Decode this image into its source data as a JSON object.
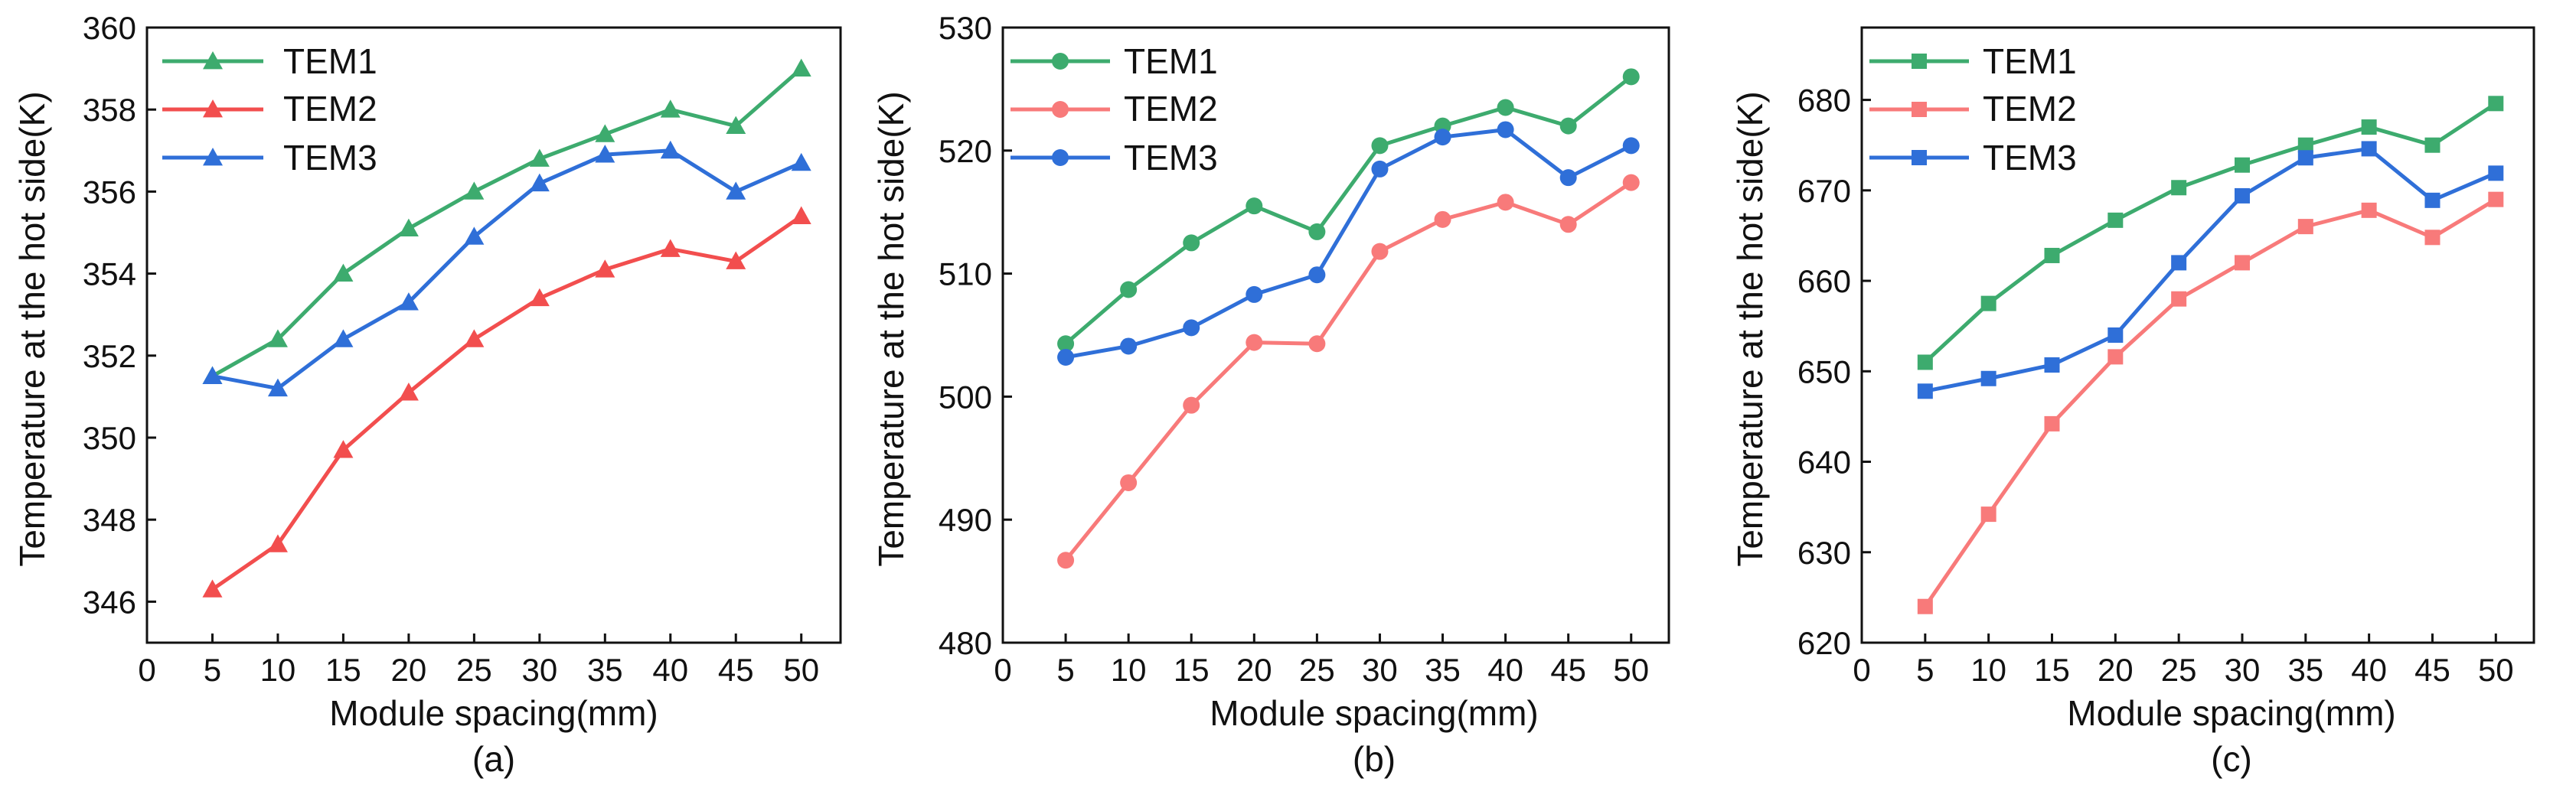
{
  "chart_data": [
    {
      "type": "line",
      "caption": "(a)",
      "xlabel": "Module spacing(mm)",
      "ylabel": "Temperature at the hot side(K)",
      "xlim": [
        0,
        53
      ],
      "xticks": [
        0,
        5,
        10,
        15,
        20,
        25,
        30,
        35,
        40,
        45,
        50
      ],
      "ylim": [
        345,
        360
      ],
      "yticks": [
        346,
        348,
        350,
        352,
        354,
        356,
        358,
        360
      ],
      "marker": "triangle",
      "x": [
        5,
        10,
        15,
        20,
        25,
        30,
        35,
        40,
        45,
        50
      ],
      "series": [
        {
          "name": "TEM1",
          "color": "#3dab6e",
          "values": [
            351.5,
            352.4,
            354.0,
            355.1,
            356.0,
            356.8,
            357.4,
            358.0,
            357.6,
            359.0
          ]
        },
        {
          "name": "TEM2",
          "color": "#f24e4e",
          "values": [
            346.3,
            347.4,
            349.7,
            351.1,
            352.4,
            353.4,
            354.1,
            354.6,
            354.3,
            355.4
          ]
        },
        {
          "name": "TEM3",
          "color": "#2f6fd8",
          "values": [
            351.5,
            351.2,
            352.4,
            353.3,
            354.9,
            356.2,
            356.9,
            357.0,
            356.0,
            356.7
          ]
        }
      ]
    },
    {
      "type": "line",
      "caption": "(b)",
      "xlabel": "Module spacing(mm)",
      "ylabel": "Temperature at the hot side(K)",
      "xlim": [
        0,
        53
      ],
      "xticks": [
        0,
        5,
        10,
        15,
        20,
        25,
        30,
        35,
        40,
        45,
        50
      ],
      "ylim": [
        480,
        530
      ],
      "yticks": [
        480,
        490,
        500,
        510,
        520,
        530
      ],
      "marker": "circle",
      "x": [
        5,
        10,
        15,
        20,
        25,
        30,
        35,
        40,
        45,
        50
      ],
      "series": [
        {
          "name": "TEM1",
          "color": "#3dab6e",
          "values": [
            504.3,
            508.7,
            512.5,
            515.5,
            513.4,
            520.4,
            522.0,
            523.5,
            522.0,
            526.0
          ]
        },
        {
          "name": "TEM2",
          "color": "#f87a7a",
          "values": [
            486.7,
            493.0,
            499.3,
            504.4,
            504.3,
            511.8,
            514.4,
            515.8,
            514.0,
            517.4
          ]
        },
        {
          "name": "TEM3",
          "color": "#2f6fd8",
          "values": [
            503.2,
            504.1,
            505.6,
            508.3,
            509.9,
            518.5,
            521.1,
            521.7,
            517.8,
            520.4
          ]
        }
      ]
    },
    {
      "type": "line",
      "caption": "(c)",
      "xlabel": "Module spacing(mm)",
      "ylabel": "Temperature at the hot side(K)",
      "xlim": [
        0,
        53
      ],
      "xticks": [
        0,
        5,
        10,
        15,
        20,
        25,
        30,
        35,
        40,
        45,
        50
      ],
      "ylim": [
        620,
        688
      ],
      "yticks": [
        620,
        630,
        640,
        650,
        660,
        670,
        680
      ],
      "marker": "square",
      "x": [
        5,
        10,
        15,
        20,
        25,
        30,
        35,
        40,
        45,
        50
      ],
      "series": [
        {
          "name": "TEM1",
          "color": "#3dab6e",
          "values": [
            651.0,
            657.5,
            662.8,
            666.7,
            670.3,
            672.8,
            675.0,
            677.0,
            675.0,
            679.6
          ]
        },
        {
          "name": "TEM2",
          "color": "#f87a7a",
          "values": [
            624.0,
            634.2,
            644.2,
            651.6,
            658.0,
            662.0,
            666.0,
            667.8,
            664.8,
            669.0
          ]
        },
        {
          "name": "TEM3",
          "color": "#2f6fd8",
          "values": [
            647.8,
            649.2,
            650.7,
            654.0,
            662.0,
            669.4,
            673.6,
            674.6,
            668.9,
            671.9
          ]
        }
      ]
    }
  ]
}
